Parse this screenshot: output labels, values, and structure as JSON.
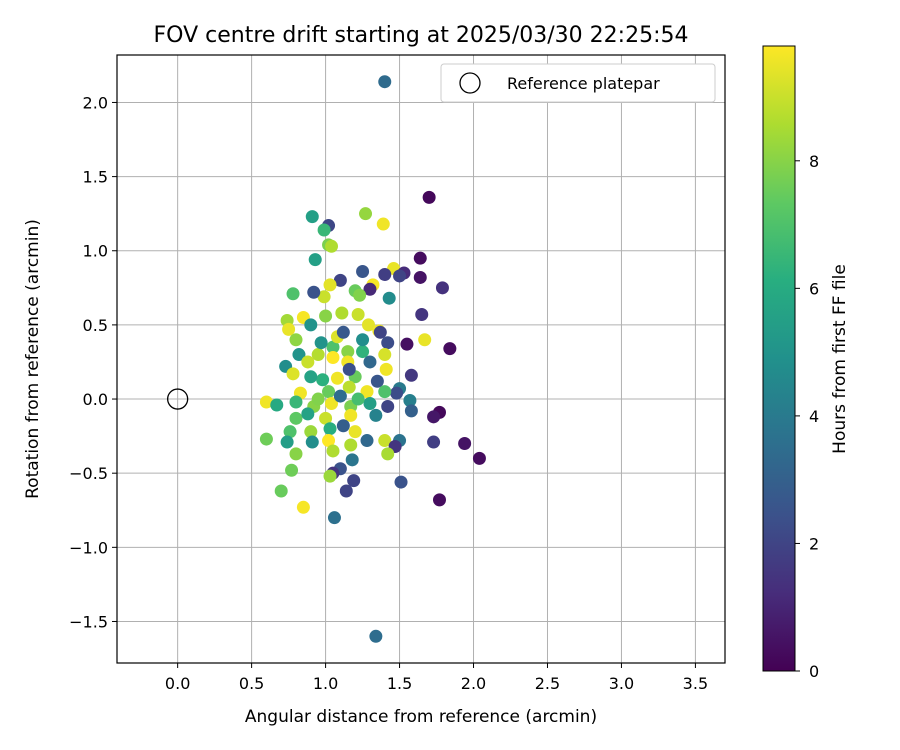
{
  "chart_data": {
    "type": "scatter",
    "title": "FOV centre drift starting at 2025/03/30 22:25:54",
    "xlabel": "Angular distance from reference (arcmin)",
    "ylabel": "Rotation from reference (arcmin)",
    "xlim": [
      -0.41,
      3.7
    ],
    "ylim": [
      -1.78,
      2.32
    ],
    "xticks": [
      "0.0",
      "0.5",
      "1.0",
      "1.5",
      "2.0",
      "2.5",
      "3.0",
      "3.5"
    ],
    "xtick_values": [
      0,
      0.5,
      1.0,
      1.5,
      2.0,
      2.5,
      3.0,
      3.5
    ],
    "yticks": [
      "−1.5",
      "−1.0",
      "−0.5",
      "0.0",
      "0.5",
      "1.0",
      "1.5",
      "2.0"
    ],
    "ytick_values": [
      -1.5,
      -1.0,
      -0.5,
      0.0,
      0.5,
      1.0,
      1.5,
      2.0
    ],
    "grid": true,
    "colormap": "viridis",
    "colorbar": {
      "label": "Hours from first FF file",
      "range": [
        0,
        9.8
      ],
      "ticks": [
        "0",
        "2",
        "4",
        "6",
        "8"
      ],
      "tick_values": [
        0,
        2,
        4,
        6,
        8
      ]
    },
    "legend": {
      "placement": "top-right",
      "entries": [
        "Reference platepar"
      ]
    },
    "reference_point": {
      "x": 0.0,
      "y": 0.0
    },
    "points": [
      [
        1.4,
        2.14,
        3.4
      ],
      [
        1.7,
        1.36,
        0.2
      ],
      [
        1.27,
        1.25,
        8.2
      ],
      [
        1.39,
        1.18,
        9.6
      ],
      [
        0.91,
        1.23,
        5.5
      ],
      [
        1.02,
        1.17,
        2.1
      ],
      [
        0.99,
        1.14,
        6.5
      ],
      [
        1.02,
        1.04,
        7.8
      ],
      [
        1.04,
        1.03,
        8.6
      ],
      [
        0.93,
        0.94,
        5.5
      ],
      [
        1.64,
        0.95,
        0.3
      ],
      [
        1.46,
        0.88,
        9.5
      ],
      [
        1.53,
        0.85,
        1.2
      ],
      [
        1.4,
        0.84,
        1.8
      ],
      [
        1.64,
        0.82,
        0.5
      ],
      [
        1.5,
        0.83,
        2.0
      ],
      [
        1.25,
        0.86,
        2.6
      ],
      [
        1.1,
        0.8,
        2.0
      ],
      [
        1.79,
        0.75,
        1.4
      ],
      [
        1.32,
        0.77,
        9.7
      ],
      [
        1.3,
        0.74,
        1.1
      ],
      [
        0.78,
        0.71,
        7.0
      ],
      [
        1.03,
        0.77,
        9.4
      ],
      [
        1.2,
        0.73,
        7.5
      ],
      [
        1.23,
        0.7,
        7.9
      ],
      [
        1.43,
        0.68,
        4.7
      ],
      [
        0.99,
        0.69,
        9.0
      ],
      [
        0.92,
        0.72,
        2.5
      ],
      [
        1.65,
        0.57,
        1.5
      ],
      [
        1.22,
        0.57,
        9.0
      ],
      [
        0.74,
        0.53,
        8.4
      ],
      [
        0.85,
        0.55,
        9.7
      ],
      [
        0.9,
        0.5,
        5.0
      ],
      [
        1.0,
        0.56,
        8.0
      ],
      [
        1.11,
        0.58,
        8.6
      ],
      [
        1.29,
        0.5,
        9.4
      ],
      [
        1.36,
        0.46,
        9.6
      ],
      [
        1.37,
        0.45,
        2.0
      ],
      [
        1.55,
        0.37,
        0.4
      ],
      [
        1.84,
        0.34,
        0.3
      ],
      [
        1.42,
        0.38,
        2.3
      ],
      [
        1.67,
        0.4,
        9.5
      ],
      [
        0.75,
        0.47,
        9.5
      ],
      [
        0.8,
        0.4,
        8.1
      ],
      [
        0.82,
        0.3,
        5.0
      ],
      [
        0.95,
        0.3,
        8.7
      ],
      [
        1.05,
        0.35,
        7.0
      ],
      [
        1.15,
        0.32,
        8.0
      ],
      [
        1.25,
        0.32,
        6.3
      ],
      [
        1.4,
        0.3,
        9.2
      ],
      [
        1.3,
        0.25,
        3.3
      ],
      [
        1.15,
        0.25,
        9.6
      ],
      [
        1.05,
        0.28,
        9.9
      ],
      [
        0.88,
        0.25,
        9.0
      ],
      [
        0.73,
        0.22,
        4.8
      ],
      [
        0.78,
        0.17,
        9.3
      ],
      [
        1.58,
        0.16,
        1.6
      ],
      [
        1.41,
        0.2,
        9.6
      ],
      [
        1.35,
        0.12,
        2.6
      ],
      [
        1.2,
        0.15,
        7.5
      ],
      [
        1.08,
        0.14,
        9.6
      ],
      [
        0.98,
        0.13,
        6.2
      ],
      [
        0.9,
        0.15,
        5.6
      ],
      [
        1.5,
        0.07,
        4.0
      ],
      [
        1.48,
        0.04,
        2.3
      ],
      [
        1.4,
        0.05,
        7.0
      ],
      [
        1.28,
        0.05,
        9.6
      ],
      [
        1.16,
        0.08,
        8.8
      ],
      [
        1.02,
        0.05,
        7.5
      ],
      [
        0.83,
        0.04,
        9.6
      ],
      [
        0.6,
        -0.02,
        9.6
      ],
      [
        0.67,
        -0.04,
        5.9
      ],
      [
        0.8,
        -0.02,
        6.5
      ],
      [
        0.92,
        -0.05,
        8.0
      ],
      [
        1.04,
        -0.03,
        9.6
      ],
      [
        1.17,
        -0.05,
        7.8
      ],
      [
        1.3,
        -0.03,
        5.5
      ],
      [
        1.42,
        -0.05,
        2.0
      ],
      [
        1.57,
        -0.01,
        4.2
      ],
      [
        1.58,
        -0.08,
        3.0
      ],
      [
        1.77,
        -0.09,
        0.2
      ],
      [
        1.73,
        -0.12,
        0.6
      ],
      [
        1.34,
        -0.11,
        4.3
      ],
      [
        1.17,
        -0.11,
        9.6
      ],
      [
        1.0,
        -0.13,
        9.0
      ],
      [
        0.8,
        -0.13,
        7.3
      ],
      [
        0.76,
        -0.22,
        7.0
      ],
      [
        0.9,
        -0.22,
        8.3
      ],
      [
        1.03,
        -0.2,
        6.1
      ],
      [
        1.2,
        -0.22,
        9.5
      ],
      [
        1.28,
        -0.28,
        3.3
      ],
      [
        1.4,
        -0.28,
        9.0
      ],
      [
        1.5,
        -0.28,
        3.7
      ],
      [
        1.47,
        -0.32,
        1.5
      ],
      [
        1.73,
        -0.29,
        1.8
      ],
      [
        1.94,
        -0.3,
        0.5
      ],
      [
        2.04,
        -0.4,
        0.3
      ],
      [
        1.42,
        -0.37,
        8.5
      ],
      [
        1.17,
        -0.31,
        8.6
      ],
      [
        1.02,
        -0.28,
        9.8
      ],
      [
        0.91,
        -0.29,
        4.8
      ],
      [
        0.74,
        -0.29,
        5.4
      ],
      [
        0.6,
        -0.27,
        7.6
      ],
      [
        0.8,
        -0.37,
        8.0
      ],
      [
        1.05,
        -0.35,
        8.6
      ],
      [
        1.18,
        -0.41,
        3.8
      ],
      [
        1.1,
        -0.47,
        2.5
      ],
      [
        1.05,
        -0.5,
        1.5
      ],
      [
        1.03,
        -0.52,
        8.3
      ],
      [
        0.77,
        -0.48,
        7.6
      ],
      [
        1.19,
        -0.55,
        2.0
      ],
      [
        1.14,
        -0.62,
        2.0
      ],
      [
        1.51,
        -0.56,
        2.5
      ],
      [
        1.77,
        -0.68,
        0.3
      ],
      [
        0.7,
        -0.62,
        7.5
      ],
      [
        0.85,
        -0.73,
        9.7
      ],
      [
        1.06,
        -0.8,
        3.6
      ],
      [
        1.34,
        -1.6,
        3.5
      ],
      [
        1.08,
        0.42,
        9.3
      ],
      [
        0.97,
        0.38,
        5.0
      ],
      [
        1.12,
        0.45,
        2.7
      ],
      [
        1.25,
        0.4,
        4.8
      ],
      [
        1.16,
        0.2,
        2.4
      ],
      [
        1.1,
        0.02,
        3.5
      ],
      [
        0.95,
        0.0,
        7.9
      ],
      [
        1.22,
        0.0,
        6.8
      ],
      [
        0.88,
        -0.1,
        5.6
      ],
      [
        1.12,
        -0.18,
        2.9
      ]
    ]
  }
}
